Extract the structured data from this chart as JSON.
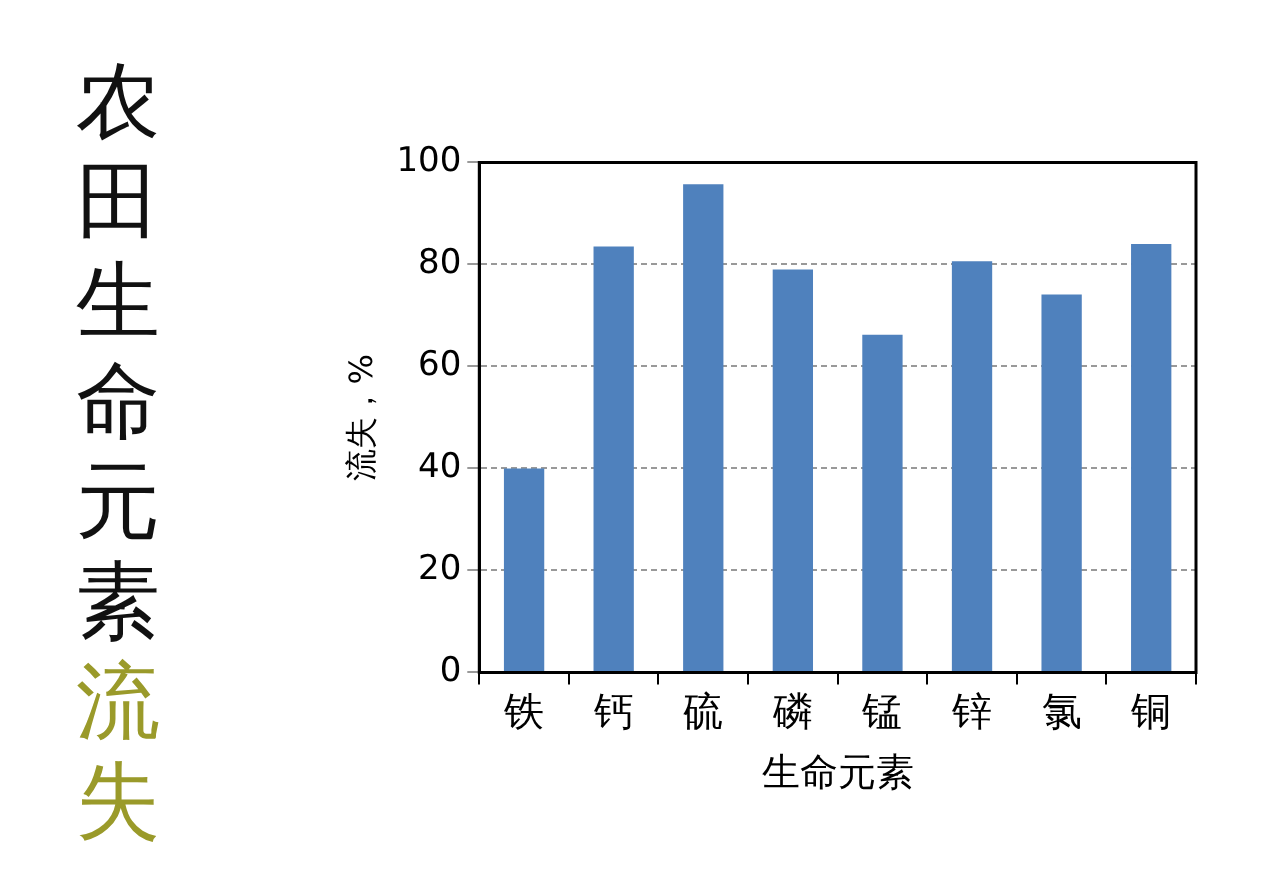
{
  "chart_data": {
    "type": "bar",
    "title": "农田生命元素",
    "subtitle": "流失",
    "xlabel": "生命元素",
    "ylabel": "流失，%",
    "categories": [
      "铁",
      "钙",
      "硫",
      "磷",
      "锰",
      "锌",
      "氯",
      "铜"
    ],
    "values": [
      40,
      83.5,
      95.7,
      79,
      66.2,
      80.6,
      74.1,
      84
    ],
    "color": "#4f81bd",
    "ylim": [
      0,
      100
    ],
    "yticks": [
      0,
      20,
      40,
      60,
      80,
      100
    ],
    "grid": "y"
  }
}
